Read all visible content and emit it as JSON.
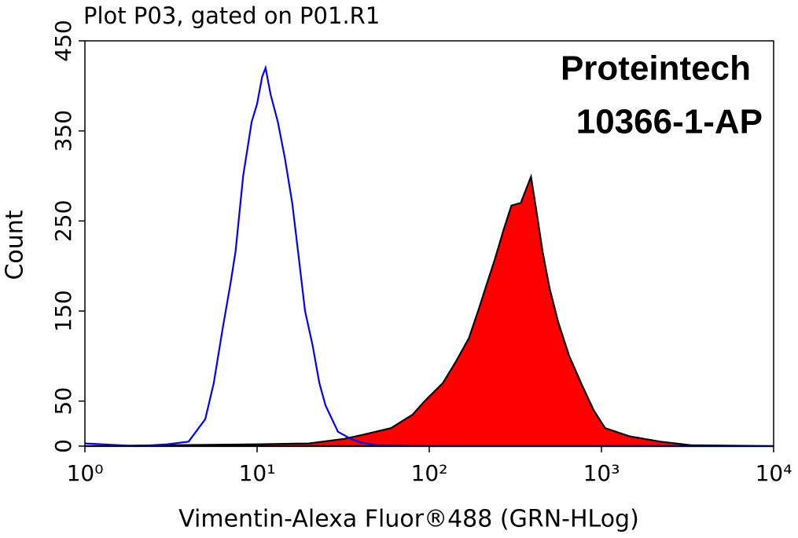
{
  "chart_data": {
    "type": "line",
    "title": "Plot P03, gated on P01.R1",
    "annotations": [
      "Proteintech",
      "10366-1-AP"
    ],
    "x_label": "Vimentin-Alexa Fluor®488 (GRN-HLog)",
    "y_label": "Count",
    "xscale": "log",
    "xlim": [
      1,
      10000
    ],
    "xticks": [
      {
        "value": 1,
        "label": "10⁰"
      },
      {
        "value": 10,
        "label": "10¹"
      },
      {
        "value": 100,
        "label": "10²"
      },
      {
        "value": 1000,
        "label": "10³"
      },
      {
        "value": 10000,
        "label": "10⁴"
      }
    ],
    "ylim": [
      0,
      450
    ],
    "yticks": [
      0,
      50,
      150,
      250,
      350,
      450
    ],
    "series": [
      {
        "color": "#ff0000",
        "outline": "#000000",
        "filled": true,
        "x": [
          1,
          3,
          10,
          20,
          32,
          40,
          60,
          80,
          94,
          120,
          143,
          170,
          196,
          220,
          240,
          270,
          300,
          340,
          390,
          420,
          455,
          500,
          560,
          650,
          770,
          900,
          1050,
          1450,
          2200,
          3300,
          10000
        ],
        "values": [
          0,
          1,
          2,
          3,
          8,
          12,
          20,
          35,
          50,
          70,
          94,
          120,
          155,
          185,
          207,
          240,
          267,
          270,
          299,
          260,
          216,
          175,
          138,
          100,
          68,
          40,
          20,
          11,
          5,
          1,
          0
        ]
      },
      {
        "color": "#0000ff",
        "filled": false,
        "x": [
          1,
          2,
          3,
          4,
          5,
          5.6,
          6.3,
          7,
          7.5,
          8.3,
          9.3,
          10,
          10.7,
          11.2,
          12,
          13.2,
          14.5,
          16,
          17.3,
          19,
          21,
          23,
          25,
          29.5,
          35,
          40,
          50,
          100,
          1000,
          10000
        ],
        "values": [
          3,
          0,
          2,
          5,
          30,
          70,
          130,
          180,
          216,
          300,
          360,
          380,
          410,
          420,
          390,
          360,
          320,
          270,
          216,
          150,
          112,
          70,
          45,
          16,
          8,
          4,
          1,
          0,
          0,
          0
        ]
      }
    ]
  }
}
